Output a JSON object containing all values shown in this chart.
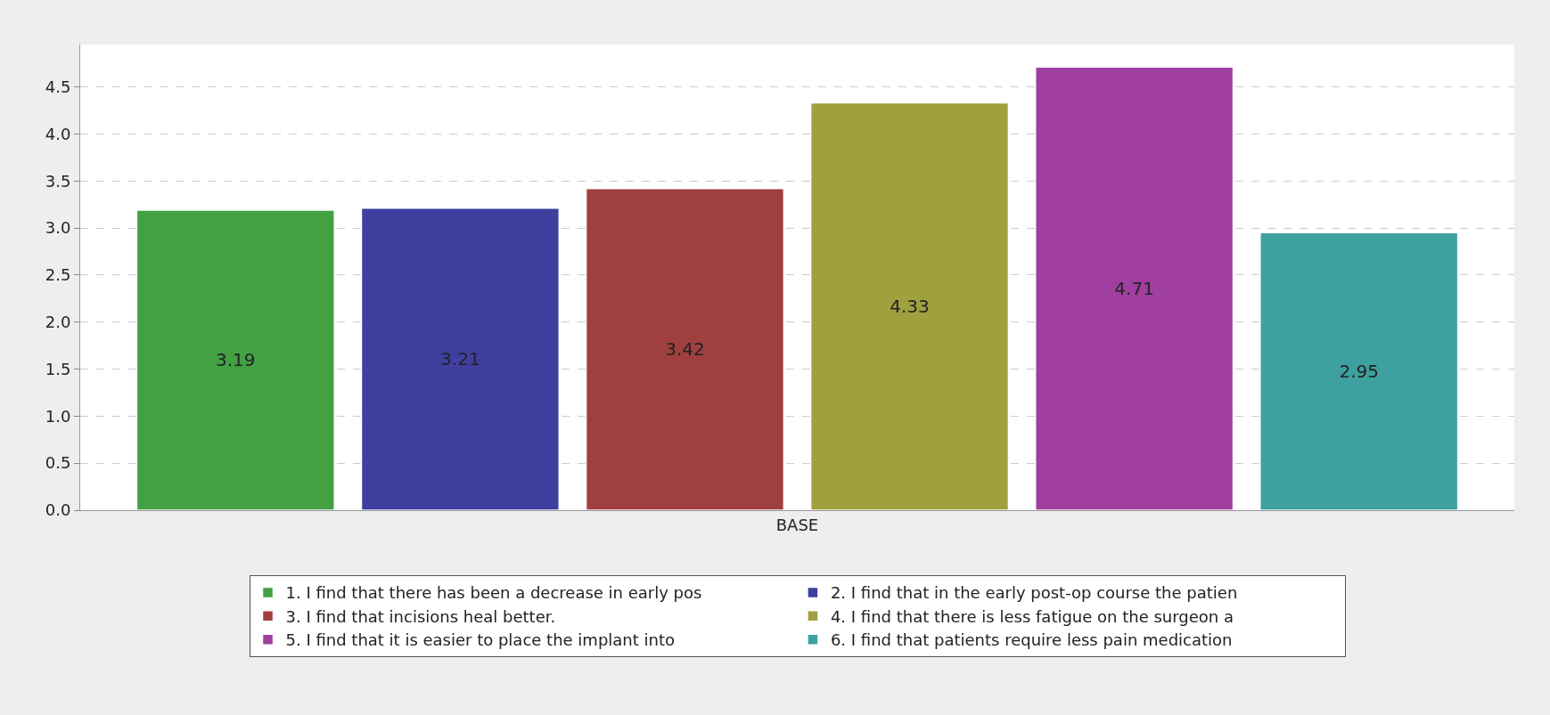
{
  "chart_data": {
    "type": "bar",
    "categories": [
      "BASE"
    ],
    "series": [
      {
        "name": "1. I find that there has been a decrease in early pos",
        "color": "#43a043",
        "values": [
          3.19
        ]
      },
      {
        "name": "2. I find that in the early post-op course the patien",
        "color": "#3f3fa0",
        "values": [
          3.21
        ]
      },
      {
        "name": "3. I find that incisions heal better.",
        "color": "#a03f3f",
        "values": [
          3.42
        ]
      },
      {
        "name": "4. I find that there is less fatigue on the surgeon a",
        "color": "#a0a03f",
        "values": [
          4.33
        ]
      },
      {
        "name": "5. I find that it is easier to place the implant into",
        "color": "#a03fa0",
        "values": [
          4.71
        ]
      },
      {
        "name": "6. I find that patients require less pain medication",
        "color": "#3fa0a0",
        "values": [
          2.95
        ]
      }
    ],
    "ylim": [
      0,
      4.95
    ],
    "yticks": [
      {
        "value": 0,
        "label": "0.0"
      },
      0.5,
      {
        "value": 1,
        "label": "1.0"
      },
      1.5,
      {
        "value": 2,
        "label": "2.0"
      },
      2.5,
      {
        "value": 3,
        "label": "3.0"
      },
      3.5,
      {
        "value": 4,
        "label": "4.0"
      },
      4.5
    ],
    "grid": "y",
    "legend": "bottom",
    "data_labels": true
  }
}
